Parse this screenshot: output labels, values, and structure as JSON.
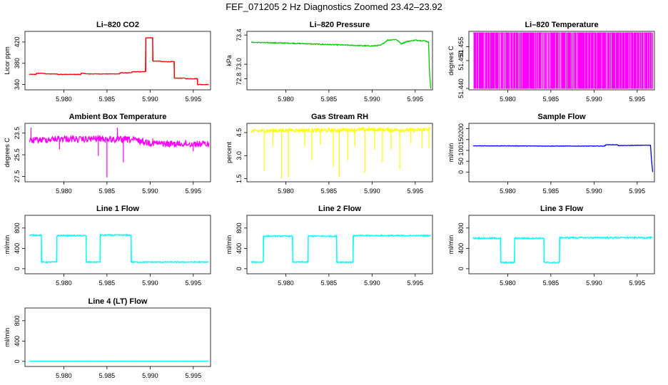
{
  "figure": {
    "title": "FEF_071205  2 Hz Diagnostics Zoomed 23.42–23.92"
  },
  "chart_data": [
    {
      "type": "line",
      "title": "Li–820 CO2",
      "ylabel": "Licor ppm",
      "color": "#ff0000",
      "xlim": [
        5.9755,
        5.997
      ],
      "ylim": [
        330,
        440
      ],
      "xticks": [
        "5.980",
        "5.985",
        "5.990",
        "5.995"
      ],
      "xtick_values": [
        5.98,
        5.985,
        5.99,
        5.995
      ],
      "yticks": [
        "340",
        "380",
        "420"
      ],
      "ytick_values": [
        340,
        380,
        420
      ],
      "x": [
        5.976,
        5.9768,
        5.9768,
        5.9778,
        5.9778,
        5.9793,
        5.9793,
        5.982,
        5.982,
        5.9825,
        5.9825,
        5.985,
        5.985,
        5.9865,
        5.9865,
        5.9879,
        5.9879,
        5.9895,
        5.9895,
        5.9895,
        5.9903,
        5.9903,
        5.9913,
        5.9913,
        5.9928,
        5.9928,
        5.9941,
        5.9941,
        5.9955,
        5.9955,
        5.9968
      ],
      "y": [
        359,
        359,
        361,
        361,
        360,
        360,
        359,
        359,
        361,
        361,
        360,
        360,
        360,
        360,
        362,
        362,
        364,
        364,
        405,
        428,
        428,
        384,
        384,
        383,
        383,
        352,
        352,
        351,
        351,
        340,
        340
      ],
      "noise": 0.5
    },
    {
      "type": "line",
      "title": "Li–820 Pressure",
      "ylabel": "kPa",
      "color": "#00cc00",
      "xlim": [
        5.9755,
        5.997
      ],
      "ylim": [
        72.65,
        73.45
      ],
      "xticks": [
        "5.980",
        "5.985",
        "5.990",
        "5.995"
      ],
      "xtick_values": [
        5.98,
        5.985,
        5.99,
        5.995
      ],
      "yticks": [
        "72.8",
        "73.0",
        "73.4"
      ],
      "ytick_values": [
        72.8,
        73.0,
        73.4
      ],
      "x": [
        5.976,
        5.98,
        5.985,
        5.99,
        5.991,
        5.9918,
        5.9928,
        5.9934,
        5.994,
        5.995,
        5.9962,
        5.99655,
        5.99665,
        5.9968
      ],
      "y": [
        73.3,
        73.29,
        73.27,
        73.25,
        73.26,
        73.33,
        73.34,
        73.28,
        73.31,
        73.33,
        73.32,
        73.3,
        72.9,
        72.66
      ],
      "noise": 0.006
    },
    {
      "type": "line",
      "title": "Li–820 Temperature",
      "ylabel": "degrees C",
      "color": "#ff00ff",
      "xlim": [
        5.9755,
        5.997
      ],
      "ylim": [
        51.4395,
        51.4605
      ],
      "xticks": [
        "5.980",
        "5.985",
        "5.990",
        "5.995"
      ],
      "xtick_values": [
        5.98,
        5.985,
        5.99,
        5.995
      ],
      "yticks": [
        "51.440",
        "51.450",
        "51.455"
      ],
      "ytick_values": [
        51.44,
        51.45,
        51.455
      ],
      "x": [
        5.976,
        5.9968
      ],
      "y": [
        51.44,
        51.46
      ],
      "pattern": "toggle"
    },
    {
      "type": "line",
      "title": "Ambient Box Temperature",
      "ylabel": "degrees C",
      "color": "#ff00ff",
      "xlim": [
        5.9755,
        5.997
      ],
      "ylim": [
        28.0,
        22.6
      ],
      "xticks": [
        "5.980",
        "5.985",
        "5.990",
        "5.995"
      ],
      "xtick_values": [
        5.98,
        5.985,
        5.99,
        5.995
      ],
      "yticks": [
        "27.5",
        "25.5",
        "23.5"
      ],
      "ytick_values": [
        27.5,
        25.5,
        23.5
      ],
      "x": [
        5.976,
        5.978,
        5.98,
        5.982,
        5.984,
        5.986,
        5.988,
        5.99,
        5.992,
        5.994,
        5.9968
      ],
      "y": [
        24.2,
        24.1,
        24.0,
        24.1,
        24.0,
        24.1,
        24.1,
        24.4,
        24.5,
        24.5,
        24.5
      ],
      "noise": 0.3,
      "spikes": [
        [
          5.9762,
          23.0
        ],
        [
          5.9795,
          25.0
        ],
        [
          5.984,
          25.6
        ],
        [
          5.985,
          27.6
        ],
        [
          5.9862,
          23.0
        ],
        [
          5.9869,
          26.2
        ],
        [
          5.9903,
          24.0
        ],
        [
          5.995,
          25.2
        ]
      ]
    },
    {
      "type": "line",
      "title": "Gas Stream RH",
      "ylabel": "percent",
      "color": "#ffff00",
      "xlim": [
        5.9755,
        5.997
      ],
      "ylim": [
        1.3,
        5.1
      ],
      "xticks": [
        "5.980",
        "5.985",
        "5.990",
        "5.995"
      ],
      "xtick_values": [
        5.98,
        5.985,
        5.99,
        5.995
      ],
      "yticks": [
        "1.5",
        "3.0",
        "4.5"
      ],
      "ytick_values": [
        1.5,
        3.0,
        4.5
      ],
      "x": [
        5.976,
        5.98,
        5.985,
        5.99,
        5.995,
        5.9968
      ],
      "y": [
        4.6,
        4.65,
        4.65,
        4.7,
        4.65,
        4.75
      ],
      "noise": 0.12,
      "spikes": [
        [
          5.9775,
          2.0
        ],
        [
          5.9785,
          3.6
        ],
        [
          5.9795,
          1.5
        ],
        [
          5.9803,
          1.6
        ],
        [
          5.9822,
          3.6
        ],
        [
          5.983,
          2.7
        ],
        [
          5.984,
          3.7
        ],
        [
          5.9855,
          2.3
        ],
        [
          5.9862,
          1.6
        ],
        [
          5.9872,
          2.7
        ],
        [
          5.988,
          3.6
        ],
        [
          5.9892,
          1.9
        ],
        [
          5.9903,
          3.4
        ],
        [
          5.9912,
          2.6
        ],
        [
          5.9922,
          3.4
        ],
        [
          5.9932,
          2.1
        ],
        [
          5.9945,
          3.8
        ],
        [
          5.9958,
          3.5
        ],
        [
          5.9966,
          3.5
        ]
      ]
    },
    {
      "type": "line",
      "title": "Sample Flow",
      "ylabel": "ml/min",
      "color": "#0000ff",
      "xlim": [
        5.9755,
        5.997
      ],
      "ylim": [
        -45,
        225
      ],
      "xticks": [
        "5.980",
        "5.985",
        "5.990",
        "5.995"
      ],
      "xtick_values": [
        5.98,
        5.985,
        5.99,
        5.995
      ],
      "yticks": [
        "0",
        "50",
        "100",
        "150",
        "200"
      ],
      "ytick_values": [
        0,
        50,
        100,
        150,
        200
      ],
      "x": [
        5.976,
        5.98,
        5.985,
        5.99,
        5.9913,
        5.9913,
        5.9928,
        5.9928,
        5.9958,
        5.99655,
        5.99665,
        5.9968
      ],
      "y": [
        121,
        121,
        120,
        120,
        120,
        126,
        126,
        122,
        124,
        124,
        60,
        0
      ],
      "noise": 1
    },
    {
      "type": "line",
      "title": "Line 1 Flow",
      "ylabel": "ml/min",
      "color": "#00ffff",
      "xlim": [
        5.9755,
        5.997
      ],
      "ylim": [
        -100,
        1050
      ],
      "xticks": [
        "5.980",
        "5.985",
        "5.990",
        "5.995"
      ],
      "xtick_values": [
        5.98,
        5.985,
        5.99,
        5.995
      ],
      "yticks": [
        "0",
        "400",
        "800"
      ],
      "ytick_values": [
        0,
        400,
        800
      ],
      "x": [
        5.976,
        5.9774,
        5.9774,
        5.9792,
        5.9792,
        5.9826,
        5.9826,
        5.9842,
        5.9842,
        5.9878,
        5.9878,
        5.9968
      ],
      "y": [
        660,
        660,
        130,
        130,
        650,
        650,
        130,
        130,
        660,
        660,
        130,
        130
      ],
      "noise": 12
    },
    {
      "type": "line",
      "title": "Line 2 Flow",
      "ylabel": "ml/min",
      "color": "#00ffff",
      "xlim": [
        5.9755,
        5.997
      ],
      "ylim": [
        -100,
        1050
      ],
      "xticks": [
        "5.980",
        "5.985",
        "5.990",
        "5.995"
      ],
      "xtick_values": [
        5.98,
        5.985,
        5.99,
        5.995
      ],
      "yticks": [
        "0",
        "400",
        "800"
      ],
      "ytick_values": [
        0,
        400,
        800
      ],
      "x": [
        5.976,
        5.9774,
        5.9774,
        5.9808,
        5.9808,
        5.9826,
        5.9826,
        5.9859,
        5.9859,
        5.9878,
        5.9878,
        5.9968
      ],
      "y": [
        130,
        130,
        640,
        640,
        130,
        130,
        640,
        640,
        130,
        130,
        650,
        650
      ],
      "noise": 12
    },
    {
      "type": "line",
      "title": "Line 3 Flow",
      "ylabel": "ml/min",
      "color": "#00ffff",
      "xlim": [
        5.9755,
        5.997
      ],
      "ylim": [
        -100,
        1050
      ],
      "xticks": [
        "5.980",
        "5.985",
        "5.990",
        "5.995"
      ],
      "xtick_values": [
        5.98,
        5.985,
        5.99,
        5.995
      ],
      "yticks": [
        "0",
        "400",
        "800"
      ],
      "ytick_values": [
        0,
        400,
        800
      ],
      "x": [
        5.976,
        5.9792,
        5.9792,
        5.9808,
        5.9808,
        5.9842,
        5.9842,
        5.986,
        5.986,
        5.9968
      ],
      "y": [
        600,
        600,
        120,
        120,
        600,
        600,
        120,
        120,
        610,
        610
      ],
      "noise": 14
    },
    {
      "type": "line",
      "title": "Line 4 (LT) Flow",
      "ylabel": "ml/min",
      "color": "#00ffff",
      "xlim": [
        5.9755,
        5.997
      ],
      "ylim": [
        -100,
        1050
      ],
      "xticks": [
        "5.980",
        "5.985",
        "5.990",
        "5.995"
      ],
      "xtick_values": [
        5.98,
        5.985,
        5.99,
        5.995
      ],
      "yticks": [
        "0",
        "400",
        "800"
      ],
      "ytick_values": [
        0,
        400,
        800
      ],
      "x": [
        5.976,
        5.9968
      ],
      "y": [
        5,
        5
      ],
      "noise": 1
    }
  ]
}
